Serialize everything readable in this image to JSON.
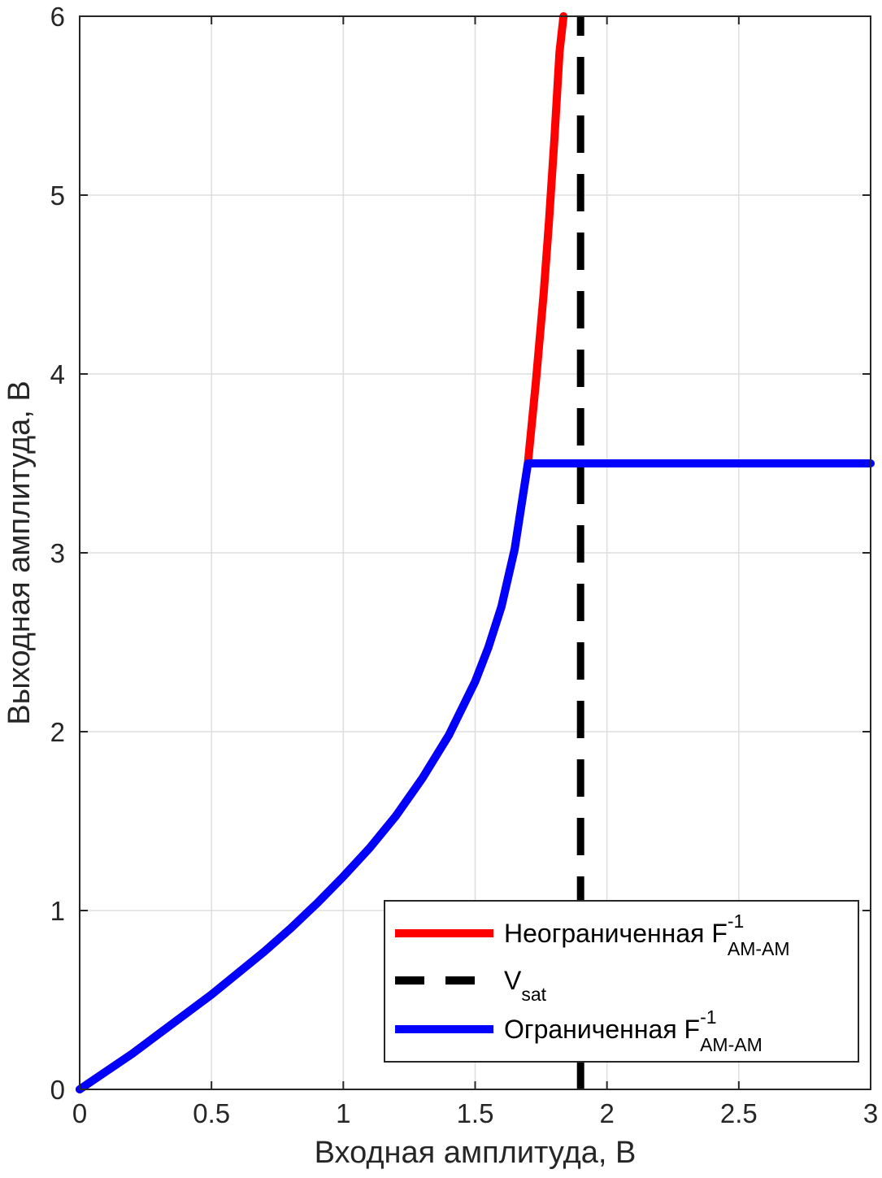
{
  "chart_data": {
    "type": "line",
    "xlabel": "Входная амплитуда, В",
    "ylabel": "Выходная амплитуда, В",
    "xlim": [
      0,
      3
    ],
    "ylim": [
      0,
      6
    ],
    "xticks": [
      0,
      0.5,
      1,
      1.5,
      2,
      2.5,
      3
    ],
    "xtick_labels": [
      "0",
      "0.5",
      "1",
      "1.5",
      "2",
      "2.5",
      "3"
    ],
    "yticks": [
      0,
      1,
      2,
      3,
      4,
      5,
      6
    ],
    "ytick_labels": [
      "0",
      "1",
      "2",
      "3",
      "4",
      "5",
      "6"
    ],
    "grid": true,
    "legend_placement": "bottom-right",
    "series": [
      {
        "key": "unbounded",
        "legend_main": "Неограниченная F",
        "legend_sup": "-1",
        "legend_sub": "AM-AM",
        "color": "#ff0000",
        "style": "solid",
        "x": [
          0,
          0.1,
          0.2,
          0.3,
          0.4,
          0.5,
          0.6,
          0.7,
          0.8,
          0.9,
          1.0,
          1.1,
          1.2,
          1.3,
          1.4,
          1.5,
          1.55,
          1.6,
          1.65,
          1.7,
          1.73,
          1.76,
          1.78,
          1.8,
          1.82,
          1.835
        ],
        "y": [
          0,
          0.1,
          0.2,
          0.31,
          0.42,
          0.53,
          0.65,
          0.77,
          0.9,
          1.04,
          1.19,
          1.35,
          1.53,
          1.74,
          1.98,
          2.28,
          2.47,
          2.7,
          3.02,
          3.5,
          3.95,
          4.45,
          4.85,
          5.3,
          5.8,
          6.0
        ]
      },
      {
        "key": "vsat",
        "legend_main": "V",
        "legend_sup": "",
        "legend_sub": "sat",
        "color": "#000000",
        "style": "dashed",
        "x": [
          1.9,
          1.9
        ],
        "y": [
          0,
          6
        ]
      },
      {
        "key": "bounded",
        "legend_main": "Ограниченная F",
        "legend_sup": "-1",
        "legend_sub": "AM-AM",
        "color": "#0000ff",
        "style": "solid",
        "x": [
          0,
          0.1,
          0.2,
          0.3,
          0.4,
          0.5,
          0.6,
          0.7,
          0.8,
          0.9,
          1.0,
          1.1,
          1.2,
          1.3,
          1.4,
          1.5,
          1.55,
          1.6,
          1.65,
          1.7,
          1.72,
          3.0
        ],
        "y": [
          0,
          0.1,
          0.2,
          0.31,
          0.42,
          0.53,
          0.65,
          0.77,
          0.9,
          1.04,
          1.19,
          1.35,
          1.53,
          1.74,
          1.98,
          2.28,
          2.47,
          2.7,
          3.02,
          3.5,
          3.5,
          3.5
        ]
      }
    ]
  }
}
